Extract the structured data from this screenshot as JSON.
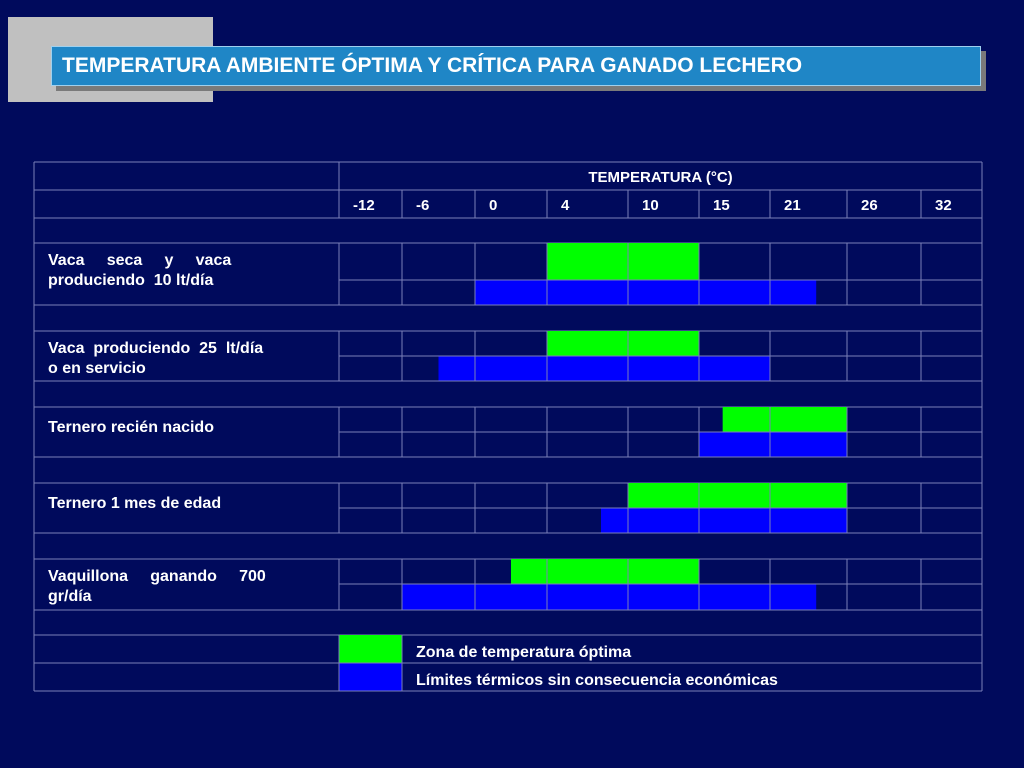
{
  "title": "TEMPERATURA AMBIENTE ÓPTIMA Y CRÍTICA PARA GANADO LECHERO",
  "chart_data": {
    "type": "table",
    "header": "TEMPERATURA (°C)",
    "columns": [
      "-12",
      "-6",
      "0",
      "4",
      "10",
      "15",
      "21",
      "26",
      "32"
    ],
    "rows": [
      {
        "label": "Vaca seca y vaca produciendo 10 lt/día",
        "label_lines": [
          "Vaca     seca     y     vaca",
          "produciendo  10 lt/día"
        ],
        "optimal": [
          4,
          15
        ],
        "limits": [
          0,
          24
        ]
      },
      {
        "label": "Vaca produciendo 25 lt/día o en servicio",
        "label_lines": [
          "Vaca  produciendo  25  lt/día",
          "o en servicio"
        ],
        "optimal": [
          4,
          15
        ],
        "limits": [
          -3,
          21
        ]
      },
      {
        "label": "Ternero recién nacido",
        "label_lines": [
          "Ternero recién nacido"
        ],
        "optimal": [
          17,
          26
        ],
        "limits": [
          15,
          26
        ]
      },
      {
        "label": "Ternero 1 mes de edad",
        "label_lines": [
          "Ternero 1 mes de edad"
        ],
        "optimal": [
          10,
          26
        ],
        "limits": [
          8,
          26
        ]
      },
      {
        "label": "Vaquillona ganando 700 gr/día",
        "label_lines": [
          "Vaquillona     ganando     700",
          "gr/día"
        ],
        "optimal": [
          2,
          15
        ],
        "limits": [
          -6,
          24
        ]
      }
    ],
    "legend": [
      {
        "label": "Zona de temperatura óptima",
        "color": "#00ff00"
      },
      {
        "label": "Límites térmicos sin consecuencia económicas",
        "color": "#0000ff"
      }
    ],
    "colors": {
      "optimal": "#00ff00",
      "limits": "#0000ff",
      "grid": "#7a80b8"
    }
  }
}
